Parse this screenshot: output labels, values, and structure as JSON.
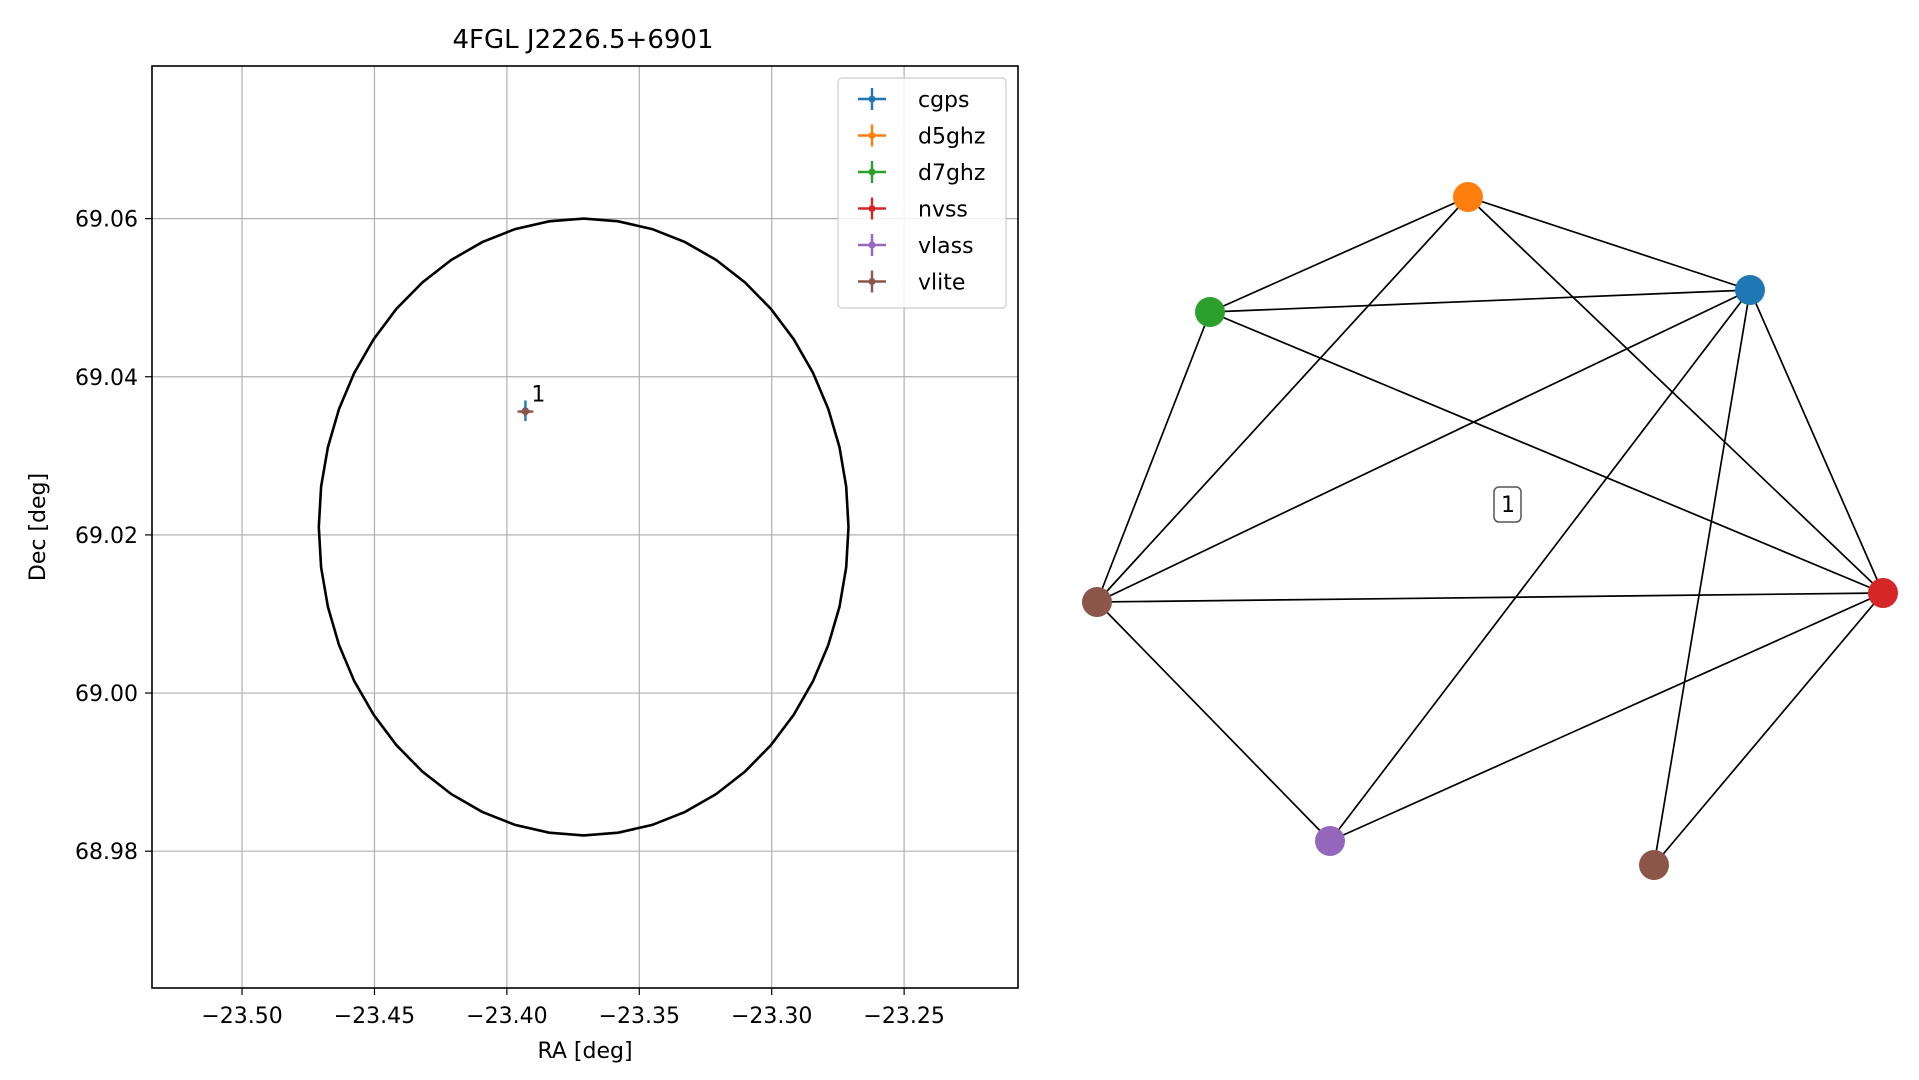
{
  "chart_data": [
    {
      "type": "scatter",
      "title": "4FGL J2226.5+6901",
      "xlabel": "RA [deg]",
      "ylabel": "Dec [deg]",
      "xlim": [
        -23.534,
        -23.207
      ],
      "ylim": [
        68.9627,
        69.0793
      ],
      "xticks": [
        {
          "v": -23.5,
          "label": "−23.50"
        },
        {
          "v": -23.45,
          "label": "−23.45"
        },
        {
          "v": -23.4,
          "label": "−23.40"
        },
        {
          "v": -23.35,
          "label": "−23.35"
        },
        {
          "v": -23.3,
          "label": "−23.30"
        },
        {
          "v": -23.25,
          "label": "−23.25"
        }
      ],
      "yticks": [
        {
          "v": 68.98,
          "label": "68.98"
        },
        {
          "v": 69.0,
          "label": "69.00"
        },
        {
          "v": 69.02,
          "label": "69.02"
        },
        {
          "v": 69.04,
          "label": "69.04"
        },
        {
          "v": 69.06,
          "label": "69.06"
        }
      ],
      "grid": true,
      "legend_position": "top-right",
      "ellipse": {
        "center_ra": -23.371,
        "center_dec": 69.021,
        "semi_ra": 0.1,
        "semi_dec": 0.039,
        "color": "#000000"
      },
      "series": [
        {
          "name": "cgps",
          "color": "#1f77b4",
          "ra": -23.393,
          "dec": 69.0357,
          "ra_err": 0.0,
          "dec_err": 0.0013
        },
        {
          "name": "d5ghz",
          "color": "#ff7f0e",
          "ra": -23.393,
          "dec": 69.0356,
          "ra_err": 0.0,
          "dec_err": 0.0
        },
        {
          "name": "d7ghz",
          "color": "#2ca02c",
          "ra": -23.393,
          "dec": 69.0356,
          "ra_err": 0.0,
          "dec_err": 0.0
        },
        {
          "name": "nvss",
          "color": "#d62728",
          "ra": -23.393,
          "dec": 69.0356,
          "ra_err": 0.002,
          "dec_err": 0.0004
        },
        {
          "name": "vlass",
          "color": "#9467bd",
          "ra": -23.393,
          "dec": 69.0356,
          "ra_err": 0.0,
          "dec_err": 0.0
        },
        {
          "name": "vlite",
          "color": "#8c564b",
          "ra": -23.393,
          "dec": 69.0356,
          "ra_err": 0.003,
          "dec_err": 0.0005
        }
      ],
      "annotation": {
        "text": "1",
        "ra": -23.393,
        "dec": 69.0356
      }
    },
    {
      "type": "network",
      "label": "1",
      "nodes": [
        {
          "id": "cgps",
          "color": "#1f77b4"
        },
        {
          "id": "d5ghz",
          "color": "#ff7f0e"
        },
        {
          "id": "d7ghz",
          "color": "#2ca02c"
        },
        {
          "id": "nvss",
          "color": "#d62728"
        },
        {
          "id": "vlass",
          "color": "#9467bd"
        },
        {
          "id": "vlite",
          "color": "#8c564b"
        },
        {
          "id": "vlite-2",
          "color": "#8c564b"
        }
      ],
      "edges": [
        [
          "d5ghz",
          "d7ghz"
        ],
        [
          "d5ghz",
          "cgps"
        ],
        [
          "d5ghz",
          "vlite"
        ],
        [
          "d5ghz",
          "nvss"
        ],
        [
          "d7ghz",
          "cgps"
        ],
        [
          "d7ghz",
          "vlite"
        ],
        [
          "d7ghz",
          "nvss"
        ],
        [
          "cgps",
          "vlite"
        ],
        [
          "cgps",
          "nvss"
        ],
        [
          "cgps",
          "vlass"
        ],
        [
          "cgps",
          "vlite-2"
        ],
        [
          "vlite",
          "nvss"
        ],
        [
          "vlite",
          "vlass"
        ],
        [
          "nvss",
          "vlass"
        ],
        [
          "nvss",
          "vlite-2"
        ]
      ]
    }
  ]
}
